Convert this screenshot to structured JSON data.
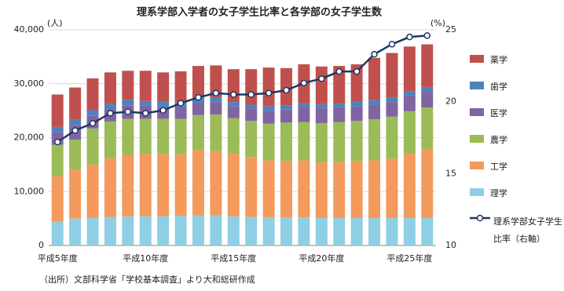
{
  "chart_data": {
    "type": "bar",
    "title": "理系学部入学者の女子学生比率と各学部の女子学生数",
    "y_unit": "(人)",
    "y2_unit": "(%)",
    "source": "（出所）文部科学省「学校基本調査」より大和総研作成",
    "stacked": true,
    "grid": true,
    "categories": [
      "平成5年度",
      null,
      null,
      null,
      null,
      "平成10年度",
      null,
      null,
      null,
      null,
      "平成15年度",
      null,
      null,
      null,
      null,
      "平成20年度",
      null,
      null,
      null,
      null,
      "平成25年度",
      null
    ],
    "ylim": [
      0,
      40000
    ],
    "yticks": [
      0,
      {
        "value": 10000,
        "label": "10,000"
      },
      {
        "value": 20000,
        "label": "20,000"
      },
      {
        "value": 30000,
        "label": "30,000"
      },
      {
        "value": 40000,
        "label": "40,000"
      }
    ],
    "y2lim": [
      10,
      25
    ],
    "y2ticks": [
      10,
      15,
      20,
      25
    ],
    "series": [
      {
        "name": "理学",
        "color": "#8fcfe4",
        "values": [
          4400,
          5000,
          5100,
          5300,
          5400,
          5400,
          5400,
          5500,
          5600,
          5600,
          5400,
          5300,
          5200,
          5200,
          5200,
          5100,
          5100,
          5100,
          5100,
          5100,
          5100,
          5100
        ]
      },
      {
        "name": "工学",
        "color": "#f39a5c",
        "values": [
          8500,
          9100,
          9900,
          10900,
          11400,
          11600,
          11500,
          11400,
          12100,
          11900,
          11600,
          11100,
          10600,
          10500,
          10600,
          10300,
          10400,
          10500,
          10700,
          11000,
          11900,
          12800
        ]
      },
      {
        "name": "農学",
        "color": "#9bbb59",
        "values": [
          5800,
          5500,
          6700,
          6800,
          6700,
          6500,
          6600,
          6600,
          6500,
          6800,
          6600,
          6700,
          6800,
          7100,
          7100,
          7300,
          7400,
          7500,
          7600,
          7800,
          7900,
          7700
        ]
      },
      {
        "name": "医学",
        "color": "#8064a2",
        "values": [
          2300,
          2700,
          2400,
          2300,
          2500,
          2400,
          2200,
          2100,
          2200,
          2300,
          2200,
          2300,
          2400,
          2400,
          2700,
          2800,
          2800,
          2700,
          2700,
          2700,
          2900,
          2900
        ]
      },
      {
        "name": "歯学",
        "color": "#4f81bd",
        "values": [
          1000,
          1100,
          1000,
          900,
          1000,
          900,
          1000,
          900,
          1100,
          900,
          800,
          700,
          800,
          800,
          700,
          700,
          600,
          900,
          900,
          900,
          800,
          900
        ]
      },
      {
        "name": "薬学",
        "color": "#c0504d",
        "values": [
          6000,
          5900,
          5900,
          5900,
          5400,
          5600,
          5400,
          5800,
          5800,
          5900,
          6100,
          6600,
          7200,
          6900,
          7300,
          7000,
          7000,
          6900,
          7800,
          8200,
          8300,
          7900
        ]
      },
      {
        "name": "理系学部女子学生比率（右軸）",
        "type": "line",
        "axis": "y2",
        "color": "#1f3864",
        "values": [
          17.2,
          18.0,
          18.5,
          19.2,
          19.3,
          19.2,
          19.4,
          19.9,
          20.3,
          20.6,
          20.5,
          20.5,
          20.6,
          20.8,
          21.3,
          21.6,
          22.1,
          22.1,
          23.3,
          24.0,
          24.5,
          24.6
        ]
      }
    ]
  }
}
